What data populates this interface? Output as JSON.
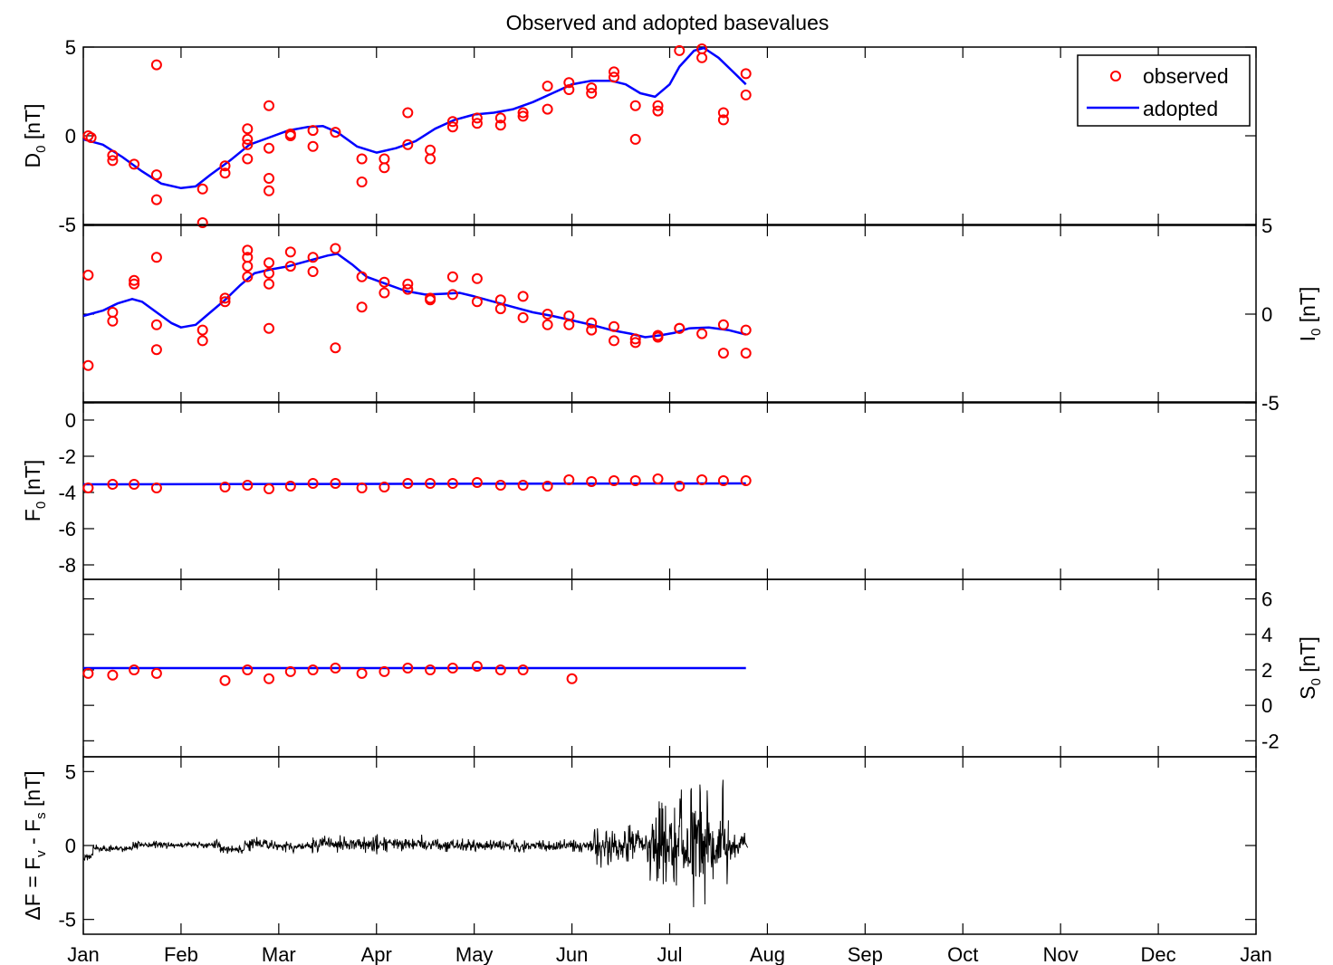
{
  "chart_data": {
    "type": "scatter",
    "title": "Observed and adopted basevalues",
    "x_months": [
      "Jan",
      "Feb",
      "Mar",
      "Apr",
      "May",
      "Jun",
      "Jul",
      "Aug",
      "Sep",
      "Oct",
      "Nov",
      "Dec",
      "Jan"
    ],
    "xlim": [
      0,
      12
    ],
    "legend": {
      "placement": "top-right",
      "entries": [
        {
          "label": "observed",
          "color": "#ff0000",
          "marker": "circle"
        },
        {
          "label": "adopted",
          "color": "#0000ff",
          "marker": "line"
        }
      ]
    },
    "panels": [
      {
        "id": "D0",
        "ylabel": "D_0 [nT]",
        "ylabel_main": "D",
        "ylabel_sub": "0",
        "ylabel_tail": " [nT]",
        "yaxis_side": "left",
        "ylim": [
          -5,
          5
        ],
        "yticks": [
          -5,
          0,
          5
        ],
        "observed": [
          [
            0.05,
            0.0
          ],
          [
            0.08,
            -0.1
          ],
          [
            0.3,
            -1.1
          ],
          [
            0.3,
            -1.4
          ],
          [
            0.52,
            -1.6
          ],
          [
            0.75,
            4.0
          ],
          [
            0.75,
            -2.2
          ],
          [
            0.75,
            -3.6
          ],
          [
            1.22,
            -3.0
          ],
          [
            1.22,
            -4.9
          ],
          [
            1.45,
            -1.7
          ],
          [
            1.45,
            -2.1
          ],
          [
            1.68,
            0.4
          ],
          [
            1.68,
            -0.2
          ],
          [
            1.68,
            -0.5
          ],
          [
            1.68,
            -1.3
          ],
          [
            1.9,
            1.7
          ],
          [
            1.9,
            -0.7
          ],
          [
            1.9,
            -2.4
          ],
          [
            1.9,
            -3.1
          ],
          [
            2.12,
            0.1
          ],
          [
            2.12,
            0.0
          ],
          [
            2.35,
            0.3
          ],
          [
            2.35,
            -0.6
          ],
          [
            2.58,
            0.2
          ],
          [
            2.85,
            -1.3
          ],
          [
            2.85,
            -2.6
          ],
          [
            3.08,
            -1.3
          ],
          [
            3.08,
            -1.8
          ],
          [
            3.32,
            1.3
          ],
          [
            3.32,
            -0.5
          ],
          [
            3.55,
            -0.8
          ],
          [
            3.55,
            -1.3
          ],
          [
            3.78,
            0.8
          ],
          [
            3.78,
            0.5
          ],
          [
            4.03,
            1.0
          ],
          [
            4.03,
            0.7
          ],
          [
            4.27,
            1.0
          ],
          [
            4.27,
            0.6
          ],
          [
            4.5,
            1.3
          ],
          [
            4.5,
            1.1
          ],
          [
            4.75,
            2.8
          ],
          [
            4.75,
            1.5
          ],
          [
            4.97,
            3.0
          ],
          [
            4.97,
            2.6
          ],
          [
            5.2,
            2.7
          ],
          [
            5.2,
            2.4
          ],
          [
            5.43,
            3.6
          ],
          [
            5.43,
            3.3
          ],
          [
            5.65,
            1.7
          ],
          [
            5.65,
            -0.2
          ],
          [
            5.88,
            1.7
          ],
          [
            5.88,
            1.4
          ],
          [
            6.1,
            4.8
          ],
          [
            6.33,
            4.9
          ],
          [
            6.33,
            4.4
          ],
          [
            6.55,
            1.3
          ],
          [
            6.55,
            0.9
          ],
          [
            6.78,
            3.5
          ],
          [
            6.78,
            2.3
          ]
        ],
        "adopted": [
          [
            0.0,
            -0.2
          ],
          [
            0.2,
            -0.5
          ],
          [
            0.4,
            -1.2
          ],
          [
            0.6,
            -2.0
          ],
          [
            0.8,
            -2.7
          ],
          [
            1.0,
            -2.95
          ],
          [
            1.15,
            -2.85
          ],
          [
            1.3,
            -2.2
          ],
          [
            1.5,
            -1.4
          ],
          [
            1.7,
            -0.5
          ],
          [
            1.9,
            -0.1
          ],
          [
            2.1,
            0.3
          ],
          [
            2.3,
            0.5
          ],
          [
            2.45,
            0.55
          ],
          [
            2.6,
            0.2
          ],
          [
            2.8,
            -0.6
          ],
          [
            3.0,
            -0.95
          ],
          [
            3.2,
            -0.7
          ],
          [
            3.4,
            -0.3
          ],
          [
            3.6,
            0.4
          ],
          [
            3.8,
            0.9
          ],
          [
            4.0,
            1.2
          ],
          [
            4.2,
            1.3
          ],
          [
            4.4,
            1.5
          ],
          [
            4.6,
            1.9
          ],
          [
            4.8,
            2.4
          ],
          [
            5.0,
            2.9
          ],
          [
            5.2,
            3.1
          ],
          [
            5.4,
            3.1
          ],
          [
            5.55,
            2.9
          ],
          [
            5.7,
            2.4
          ],
          [
            5.85,
            2.2
          ],
          [
            6.0,
            2.9
          ],
          [
            6.1,
            3.9
          ],
          [
            6.25,
            4.8
          ],
          [
            6.35,
            4.95
          ],
          [
            6.5,
            4.4
          ],
          [
            6.65,
            3.6
          ],
          [
            6.78,
            2.9
          ]
        ]
      },
      {
        "id": "I0",
        "ylabel": "I_0 [nT]",
        "ylabel_main": "I",
        "ylabel_sub": "0",
        "ylabel_tail": " [nT]",
        "yaxis_side": "right",
        "ylim": [
          -5,
          5
        ],
        "yticks": [
          -5,
          0,
          5
        ],
        "observed": [
          [
            0.05,
            2.2
          ],
          [
            0.05,
            -2.9
          ],
          [
            0.3,
            0.1
          ],
          [
            0.3,
            -0.4
          ],
          [
            0.52,
            1.9
          ],
          [
            0.52,
            1.7
          ],
          [
            0.75,
            3.2
          ],
          [
            0.75,
            -0.6
          ],
          [
            0.75,
            -2.0
          ],
          [
            1.22,
            -0.9
          ],
          [
            1.22,
            -1.5
          ],
          [
            1.45,
            0.9
          ],
          [
            1.45,
            0.7
          ],
          [
            1.68,
            3.6
          ],
          [
            1.68,
            3.2
          ],
          [
            1.68,
            2.7
          ],
          [
            1.68,
            2.1
          ],
          [
            1.9,
            2.9
          ],
          [
            1.9,
            2.3
          ],
          [
            1.9,
            1.7
          ],
          [
            1.9,
            -0.8
          ],
          [
            2.12,
            3.5
          ],
          [
            2.12,
            2.7
          ],
          [
            2.35,
            3.2
          ],
          [
            2.35,
            2.4
          ],
          [
            2.58,
            3.7
          ],
          [
            2.58,
            -1.9
          ],
          [
            2.85,
            2.1
          ],
          [
            2.85,
            0.4
          ],
          [
            3.08,
            1.8
          ],
          [
            3.08,
            1.2
          ],
          [
            3.32,
            1.7
          ],
          [
            3.32,
            1.4
          ],
          [
            3.55,
            0.9
          ],
          [
            3.55,
            0.8
          ],
          [
            3.78,
            2.1
          ],
          [
            3.78,
            1.1
          ],
          [
            4.03,
            2.0
          ],
          [
            4.03,
            0.7
          ],
          [
            4.27,
            0.8
          ],
          [
            4.27,
            0.3
          ],
          [
            4.5,
            1.0
          ],
          [
            4.5,
            -0.2
          ],
          [
            4.75,
            0.0
          ],
          [
            4.75,
            -0.6
          ],
          [
            4.97,
            -0.1
          ],
          [
            4.97,
            -0.6
          ],
          [
            5.2,
            -0.5
          ],
          [
            5.2,
            -0.9
          ],
          [
            5.43,
            -0.7
          ],
          [
            5.43,
            -1.5
          ],
          [
            5.65,
            -1.4
          ],
          [
            5.65,
            -1.6
          ],
          [
            5.88,
            -1.2
          ],
          [
            5.88,
            -1.3
          ],
          [
            6.1,
            -0.8
          ],
          [
            6.1,
            -0.8
          ],
          [
            6.33,
            -1.1
          ],
          [
            6.55,
            -0.6
          ],
          [
            6.55,
            -2.2
          ],
          [
            6.78,
            -0.9
          ],
          [
            6.78,
            -2.2
          ]
        ],
        "adopted": [
          [
            0.0,
            -0.1
          ],
          [
            0.2,
            0.2
          ],
          [
            0.35,
            0.6
          ],
          [
            0.5,
            0.85
          ],
          [
            0.6,
            0.7
          ],
          [
            0.75,
            0.1
          ],
          [
            0.9,
            -0.5
          ],
          [
            1.0,
            -0.75
          ],
          [
            1.15,
            -0.6
          ],
          [
            1.3,
            0.1
          ],
          [
            1.45,
            0.8
          ],
          [
            1.6,
            1.6
          ],
          [
            1.75,
            2.3
          ],
          [
            1.9,
            2.5
          ],
          [
            2.1,
            2.7
          ],
          [
            2.3,
            3.0
          ],
          [
            2.5,
            3.3
          ],
          [
            2.6,
            3.4
          ],
          [
            2.75,
            2.8
          ],
          [
            2.9,
            2.1
          ],
          [
            3.1,
            1.7
          ],
          [
            3.3,
            1.3
          ],
          [
            3.5,
            1.1
          ],
          [
            3.7,
            1.15
          ],
          [
            3.85,
            1.2
          ],
          [
            4.0,
            1.0
          ],
          [
            4.2,
            0.7
          ],
          [
            4.4,
            0.4
          ],
          [
            4.6,
            0.1
          ],
          [
            4.8,
            -0.1
          ],
          [
            5.0,
            -0.35
          ],
          [
            5.2,
            -0.6
          ],
          [
            5.4,
            -0.9
          ],
          [
            5.6,
            -1.1
          ],
          [
            5.75,
            -1.3
          ],
          [
            5.9,
            -1.2
          ],
          [
            6.05,
            -1.05
          ],
          [
            6.2,
            -0.8
          ],
          [
            6.4,
            -0.75
          ],
          [
            6.6,
            -0.9
          ],
          [
            6.78,
            -1.15
          ]
        ]
      },
      {
        "id": "F0",
        "ylabel": "F_0 [nT]",
        "ylabel_main": "F",
        "ylabel_sub": "0",
        "ylabel_tail": " [nT]",
        "yaxis_side": "left",
        "ylim": [
          -8.8,
          1
        ],
        "yticks": [
          -8,
          -6,
          -4,
          -2,
          0
        ],
        "observed": [
          [
            0.05,
            -3.75
          ],
          [
            0.3,
            -3.55
          ],
          [
            0.52,
            -3.55
          ],
          [
            0.75,
            -3.75
          ],
          [
            1.45,
            -3.7
          ],
          [
            1.68,
            -3.6
          ],
          [
            1.9,
            -3.8
          ],
          [
            2.12,
            -3.65
          ],
          [
            2.35,
            -3.5
          ],
          [
            2.58,
            -3.5
          ],
          [
            2.85,
            -3.75
          ],
          [
            3.08,
            -3.7
          ],
          [
            3.32,
            -3.5
          ],
          [
            3.55,
            -3.5
          ],
          [
            3.78,
            -3.5
          ],
          [
            4.03,
            -3.45
          ],
          [
            4.27,
            -3.6
          ],
          [
            4.5,
            -3.6
          ],
          [
            4.75,
            -3.65
          ],
          [
            4.97,
            -3.3
          ],
          [
            5.2,
            -3.4
          ],
          [
            5.43,
            -3.35
          ],
          [
            5.65,
            -3.35
          ],
          [
            5.88,
            -3.25
          ],
          [
            6.1,
            -3.65
          ],
          [
            6.33,
            -3.3
          ],
          [
            6.55,
            -3.35
          ],
          [
            6.78,
            -3.35
          ]
        ],
        "adopted": [
          [
            0.0,
            -3.55
          ],
          [
            6.78,
            -3.5
          ]
        ]
      },
      {
        "id": "S0",
        "ylabel": "S_0 [nT]",
        "ylabel_main": "S",
        "ylabel_sub": "0",
        "ylabel_tail": " [nT]",
        "yaxis_side": "right",
        "ylim": [
          -2.9,
          7.1
        ],
        "yticks": [
          -2,
          0,
          2,
          4,
          6
        ],
        "observed": [
          [
            0.05,
            1.8
          ],
          [
            0.3,
            1.7
          ],
          [
            0.52,
            2.0
          ],
          [
            0.75,
            1.8
          ],
          [
            1.45,
            1.4
          ],
          [
            1.68,
            2.0
          ],
          [
            1.9,
            1.5
          ],
          [
            2.12,
            1.9
          ],
          [
            2.35,
            2.0
          ],
          [
            2.58,
            2.1
          ],
          [
            2.85,
            1.8
          ],
          [
            3.08,
            1.9
          ],
          [
            3.32,
            2.1
          ],
          [
            3.55,
            2.0
          ],
          [
            3.78,
            2.1
          ],
          [
            4.03,
            2.2
          ],
          [
            4.27,
            2.0
          ],
          [
            4.5,
            2.0
          ],
          [
            5.0,
            1.5
          ]
        ],
        "adopted": [
          [
            0.0,
            2.1
          ],
          [
            6.78,
            2.1
          ]
        ]
      },
      {
        "id": "dF",
        "ylabel": "ΔF = F_v - F_s [nT]",
        "yaxis_side": "left",
        "ylim": [
          -6,
          6
        ],
        "yticks": [
          -5,
          0,
          5
        ],
        "delta_f_segments": [
          {
            "x": [
              0.0,
              0.1
            ],
            "level": -0.8,
            "amplitude": 0.4
          },
          {
            "x": [
              0.1,
              0.5
            ],
            "level": -0.2,
            "amplitude": 0.3
          },
          {
            "x": [
              0.5,
              1.4
            ],
            "level": 0.05,
            "amplitude": 0.35
          },
          {
            "x": [
              1.4,
              1.65
            ],
            "level": -0.3,
            "amplitude": 0.4
          },
          {
            "x": [
              1.65,
              1.9
            ],
            "level": 0.1,
            "amplitude": 0.6
          },
          {
            "x": [
              1.9,
              2.35
            ],
            "level": -0.05,
            "amplitude": 0.5
          },
          {
            "x": [
              2.35,
              3.5
            ],
            "level": 0.1,
            "amplitude": 0.7
          },
          {
            "x": [
              3.5,
              5.2
            ],
            "level": 0.0,
            "amplitude": 0.5
          },
          {
            "x": [
              5.2,
              5.8
            ],
            "level": -0.1,
            "amplitude": 1.5
          },
          {
            "x": [
              5.8,
              6.6
            ],
            "level": 0.0,
            "amplitude": 4.5
          },
          {
            "x": [
              6.6,
              6.8
            ],
            "level": 0.0,
            "amplitude": 1.0
          }
        ]
      }
    ]
  }
}
